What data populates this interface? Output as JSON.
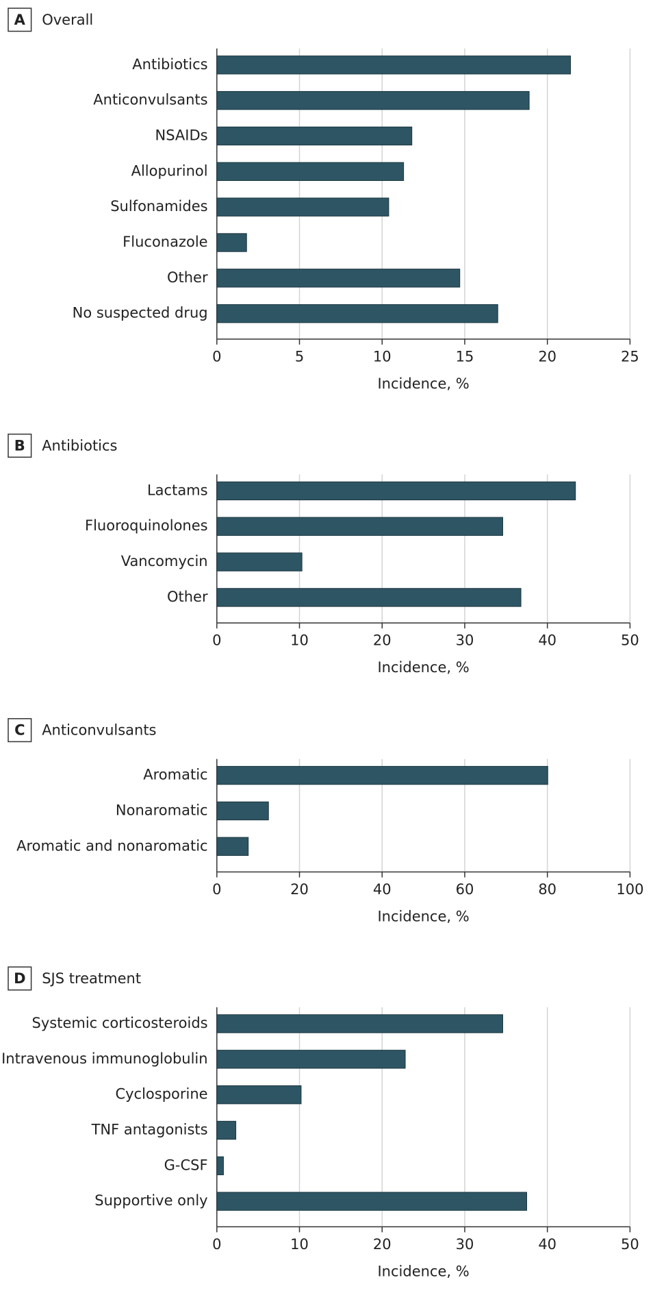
{
  "chart_data": [
    {
      "type": "bar",
      "orientation": "horizontal",
      "panel": "A",
      "title": "Overall",
      "categories": [
        "Antibiotics",
        "Anticonvulsants",
        "NSAIDs",
        "Allopurinol",
        "Sulfonamides",
        "Fluconazole",
        "Other",
        "No suspected drug"
      ],
      "values": [
        21.4,
        18.9,
        11.8,
        11.3,
        10.4,
        1.8,
        14.7,
        17.0
      ],
      "color": "#2e5563",
      "xlabel": "Incidence, %",
      "xlim": [
        0,
        25
      ],
      "xticks": [
        0,
        5,
        10,
        15,
        20,
        25
      ],
      "grid": true
    },
    {
      "type": "bar",
      "orientation": "horizontal",
      "panel": "B",
      "title": "Antibiotics",
      "categories": [
        "Lactams",
        "Fluoroquinolones",
        "Vancomycin",
        "Other"
      ],
      "values": [
        43.4,
        34.6,
        10.3,
        36.8
      ],
      "color": "#2e5563",
      "xlabel": "Incidence, %",
      "xlim": [
        0,
        50
      ],
      "xticks": [
        0,
        10,
        20,
        30,
        40,
        50
      ],
      "grid": true
    },
    {
      "type": "bar",
      "orientation": "horizontal",
      "panel": "C",
      "title": "Anticonvulsants",
      "categories": [
        "Aromatic",
        "Nonaromatic",
        "Aromatic and nonaromatic"
      ],
      "values": [
        80.1,
        12.5,
        7.6
      ],
      "color": "#2e5563",
      "xlabel": "Incidence, %",
      "xlim": [
        0,
        100
      ],
      "xticks": [
        0,
        20,
        40,
        60,
        80,
        100
      ],
      "grid": true
    },
    {
      "type": "bar",
      "orientation": "horizontal",
      "panel": "D",
      "title": "SJS treatment",
      "categories": [
        "Systemic corticosteroids",
        "Intravenous immunoglobulin",
        "Cyclosporine",
        "TNF antagonists",
        "G-CSF",
        "Supportive only"
      ],
      "values": [
        34.6,
        22.8,
        10.2,
        2.3,
        0.8,
        37.5
      ],
      "color": "#2e5563",
      "xlabel": "Incidence, %",
      "xlim": [
        0,
        50
      ],
      "xticks": [
        0,
        10,
        20,
        30,
        40,
        50
      ],
      "grid": true
    }
  ]
}
